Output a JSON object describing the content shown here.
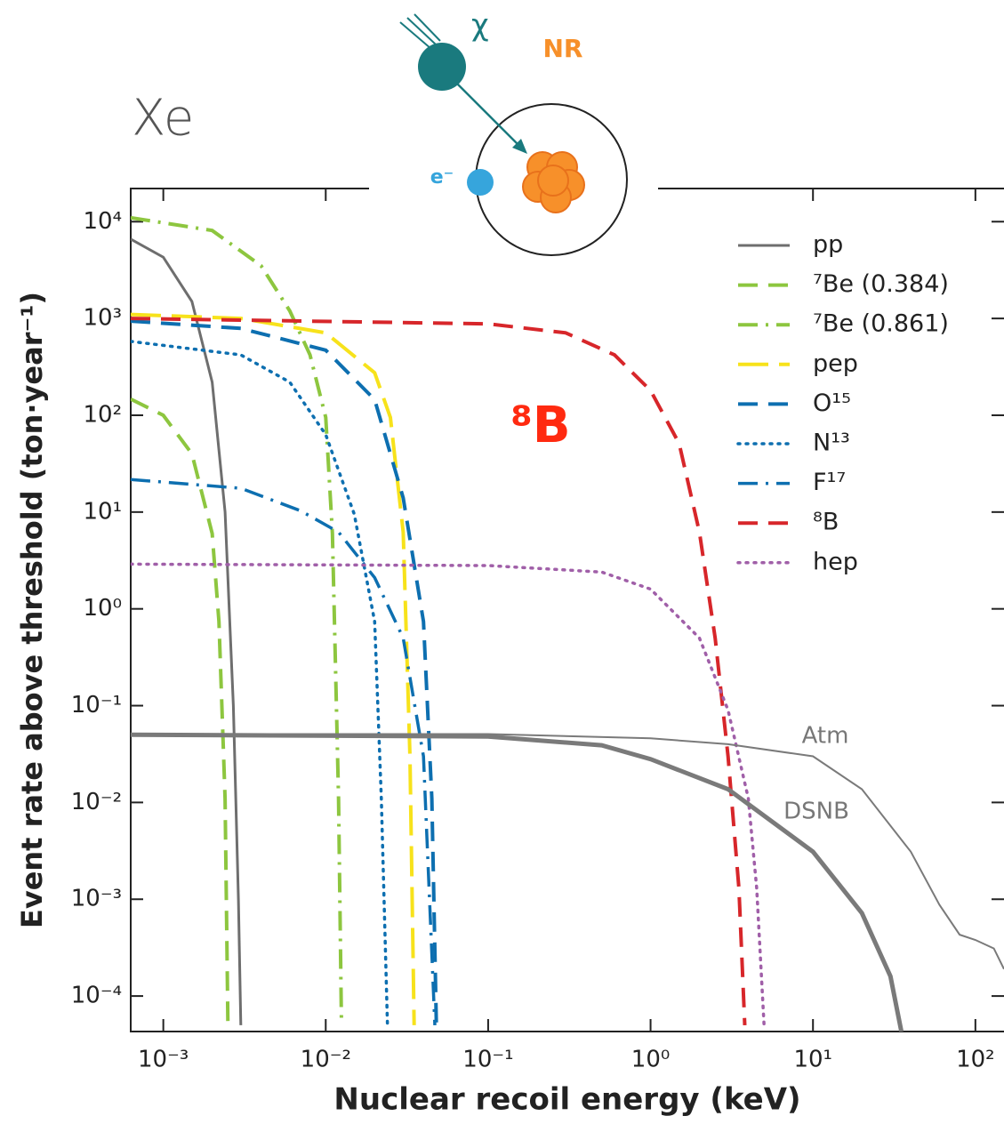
{
  "chart_data": {
    "type": "line",
    "title": "Xe",
    "x_label": "Nuclear recoil energy (keV)",
    "y_label": "Event rate above threshold (ton·year⁻¹)",
    "log_x": true,
    "log_y": true,
    "xlim": [
      0.00063,
      150
    ],
    "ylim": [
      4.3e-05,
      22000
    ],
    "xticks": [
      {
        "value": 0.001,
        "label": "10⁻³"
      },
      {
        "value": 0.01,
        "label": "10⁻²"
      },
      {
        "value": 0.1,
        "label": "10⁻¹"
      },
      {
        "value": 1,
        "label": "10⁰"
      },
      {
        "value": 10,
        "label": "10¹"
      },
      {
        "value": 100,
        "label": "10²"
      }
    ],
    "yticks": [
      {
        "value": 0.0001,
        "label": "10⁻⁴"
      },
      {
        "value": 0.001,
        "label": "10⁻³"
      },
      {
        "value": 0.01,
        "label": "10⁻²"
      },
      {
        "value": 0.1,
        "label": "10⁻¹"
      },
      {
        "value": 1,
        "label": "10⁰"
      },
      {
        "value": 10,
        "label": "10¹"
      },
      {
        "value": 100,
        "label": "10²"
      },
      {
        "value": 1000,
        "label": "10³"
      },
      {
        "value": 10000,
        "label": "10⁴"
      }
    ],
    "legend": "upper right",
    "series": [
      {
        "name": "pp",
        "color": "#6e6e6e",
        "dash": "solid",
        "width": 3,
        "legend": true,
        "x": [
          0.00063,
          0.001,
          0.0015,
          0.002,
          0.0024,
          0.0027,
          0.0029,
          0.003
        ],
        "values": [
          6600,
          4300,
          1500,
          220,
          10,
          0.1,
          0.001,
          5e-05
        ]
      },
      {
        "name": "⁷Be (0.384)",
        "color": "#8dc63f",
        "dash": "dashed",
        "width": 4,
        "legend": true,
        "x": [
          0.00063,
          0.001,
          0.0015,
          0.002,
          0.0022,
          0.0024,
          0.0025
        ],
        "values": [
          147,
          100,
          40,
          6,
          0.74,
          0.011,
          5e-05
        ]
      },
      {
        "name": "⁷Be (0.861)",
        "color": "#8dc63f",
        "dash": "dashdot",
        "width": 4,
        "legend": true,
        "x": [
          0.00063,
          0.002,
          0.004,
          0.006,
          0.008,
          0.01,
          0.011,
          0.012,
          0.0125
        ],
        "values": [
          11000,
          8100,
          3500,
          1200,
          420,
          95,
          6,
          0.011,
          5e-05
        ]
      },
      {
        "name": "pep",
        "color": "#f7e21b",
        "dash": "longdash",
        "width": 4,
        "legend": true,
        "x": [
          0.00063,
          0.003,
          0.01,
          0.02,
          0.025,
          0.03,
          0.033,
          0.035
        ],
        "values": [
          1100,
          1000,
          710,
          275,
          95,
          6.2,
          0.03,
          5e-05
        ]
      },
      {
        "name": "O¹⁵",
        "color": "#0d6fb0",
        "dash": "dashed",
        "width": 4,
        "legend": true,
        "x": [
          0.00063,
          0.003,
          0.01,
          0.02,
          0.03,
          0.04,
          0.045,
          0.048
        ],
        "values": [
          940,
          790,
          470,
          145,
          14,
          0.74,
          0.011,
          5e-05
        ]
      },
      {
        "name": "N¹³",
        "color": "#0d6fb0",
        "dash": "dotted",
        "width": 3.5,
        "legend": true,
        "x": [
          0.00063,
          0.003,
          0.006,
          0.01,
          0.015,
          0.02,
          0.022,
          0.024
        ],
        "values": [
          580,
          420,
          220,
          63,
          9.5,
          0.74,
          0.011,
          5e-05
        ]
      },
      {
        "name": "F¹⁷",
        "color": "#0d6fb0",
        "dash": "dashdot",
        "width": 3.5,
        "legend": true,
        "x": [
          0.00063,
          0.003,
          0.007,
          0.012,
          0.02,
          0.03,
          0.04,
          0.047
        ],
        "values": [
          21.7,
          17.6,
          10.3,
          6.2,
          2.1,
          0.5,
          0.03,
          5e-05
        ]
      },
      {
        "name": "⁸B",
        "color": "#d7262a",
        "dash": "dashed",
        "width": 4,
        "legend": true,
        "x": [
          0.00063,
          0.1,
          0.3,
          0.6,
          1,
          1.5,
          2,
          2.5,
          3,
          3.5,
          3.8
        ],
        "values": [
          1000,
          880,
          710,
          420,
          180,
          51,
          6.2,
          0.5,
          0.03,
          0.0013,
          5e-05
        ]
      },
      {
        "name": "hep",
        "color": "#a05fa8",
        "dash": "dotted",
        "width": 3.5,
        "legend": true,
        "x": [
          0.00063,
          0.1,
          0.5,
          1,
          2,
          3,
          4,
          4.5,
          5
        ],
        "values": [
          2.9,
          2.8,
          2.4,
          1.6,
          0.5,
          0.09,
          0.011,
          0.0013,
          5e-05
        ]
      },
      {
        "name": "Atm",
        "color": "#7a7a7a",
        "dash": "solid",
        "width": 2,
        "legend": false,
        "x": [
          0.00063,
          0.1,
          1,
          3,
          10,
          20,
          40,
          60,
          80,
          100,
          130,
          150
        ],
        "values": [
          0.0509,
          0.0509,
          0.046,
          0.04,
          0.03,
          0.0137,
          0.0031,
          0.00088,
          0.00043,
          0.00038,
          0.00031,
          0.00019
        ]
      },
      {
        "name": "DSNB",
        "color": "#7a7a7a",
        "dash": "solid",
        "width": 5,
        "legend": false,
        "x": [
          0.00063,
          0.1,
          0.5,
          1,
          3,
          10,
          20,
          30,
          35
        ],
        "values": [
          0.05,
          0.048,
          0.039,
          0.028,
          0.0137,
          0.0031,
          0.00072,
          0.00016,
          4.3e-05
        ]
      }
    ],
    "annotations": {
      "big_label": "⁸B",
      "particle": "χ",
      "recoil": "NR",
      "electron": "e⁻"
    }
  }
}
